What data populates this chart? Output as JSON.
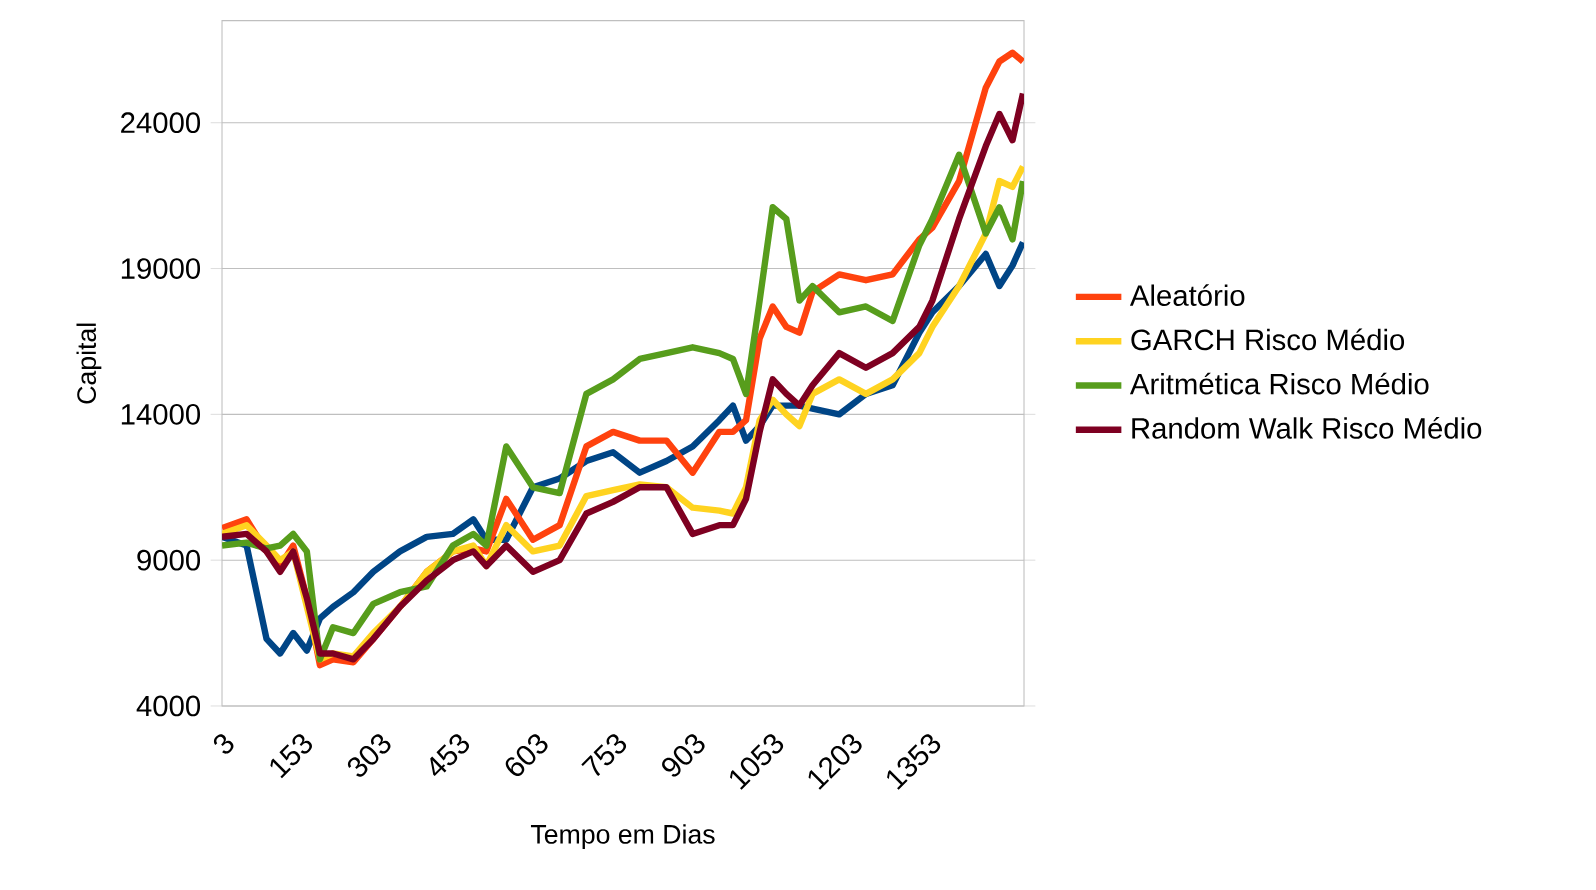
{
  "chart_data": {
    "type": "line",
    "xlabel": "Tempo em Dias",
    "ylabel": "Capital",
    "x": [
      3,
      50,
      88,
      114,
      139,
      165,
      190,
      215,
      254,
      292,
      343,
      394,
      444,
      483,
      508,
      546,
      597,
      648,
      699,
      750,
      801,
      852,
      902,
      953,
      979,
      1004,
      1030,
      1055,
      1081,
      1106,
      1131,
      1182,
      1233,
      1284,
      1335,
      1360,
      1411,
      1462,
      1488,
      1513,
      1533
    ],
    "xlim": [
      3,
      1535
    ],
    "xticks": [
      3,
      153,
      303,
      453,
      603,
      753,
      903,
      1053,
      1203,
      1353
    ],
    "ylim": [
      4000,
      27500
    ],
    "yticks": [
      4000,
      9000,
      14000,
      19000,
      24000
    ],
    "grid": "y",
    "legend": "right",
    "marker": "none",
    "line_style": "solid",
    "series": [
      {
        "color": "#004586",
        "values": [
          9800,
          9500,
          6300,
          5800,
          6500,
          5900,
          7000,
          7400,
          7900,
          8600,
          9300,
          9800,
          9900,
          10400,
          9700,
          9700,
          11500,
          11800,
          12400,
          12700,
          12000,
          12400,
          12900,
          13800,
          14300,
          13100,
          13600,
          14300,
          14300,
          14300,
          14200,
          14000,
          14700,
          15000,
          16800,
          17500,
          18400,
          19500,
          18400,
          19100,
          19900
        ]
      },
      {
        "name": "Aleatório",
        "color": "#ff420e",
        "values": [
          10100,
          10400,
          9300,
          8800,
          9500,
          7700,
          5400,
          5600,
          5500,
          6300,
          7400,
          8600,
          9300,
          9400,
          9300,
          11100,
          9700,
          10200,
          12900,
          13400,
          13100,
          13100,
          12000,
          13400,
          13400,
          13800,
          16600,
          17700,
          17000,
          16800,
          18200,
          18800,
          18600,
          18800,
          20000,
          20400,
          22000,
          25200,
          26100,
          26400,
          26100
        ]
      },
      {
        "name": "GARCH Risco Médio",
        "color": "#ffd320",
        "values": [
          9900,
          10200,
          9500,
          9000,
          9300,
          7400,
          5600,
          5800,
          5700,
          6500,
          7400,
          8600,
          9300,
          9500,
          8800,
          10200,
          9300,
          9500,
          11200,
          11400,
          11600,
          11500,
          10800,
          10700,
          10600,
          11500,
          13800,
          14500,
          14000,
          13600,
          14700,
          15200,
          14700,
          15200,
          16100,
          17000,
          18400,
          20200,
          22000,
          21800,
          22500
        ]
      },
      {
        "name": "Aritmética Risco Médio",
        "color": "#579d1c",
        "values": [
          9500,
          9600,
          9400,
          9500,
          9900,
          9300,
          5600,
          6700,
          6500,
          7500,
          7900,
          8100,
          9500,
          9900,
          9500,
          12900,
          11500,
          11300,
          14700,
          15200,
          15900,
          16100,
          16300,
          16100,
          15900,
          14700,
          17900,
          21100,
          20700,
          17900,
          18400,
          17500,
          17700,
          17200,
          19800,
          20700,
          22900,
          20200,
          21100,
          20000,
          22000
        ]
      },
      {
        "name": "Random Walk Risco Médio",
        "color": "#7e0021",
        "values": [
          9800,
          9900,
          9300,
          8600,
          9300,
          7700,
          5800,
          5800,
          5600,
          6300,
          7400,
          8300,
          9000,
          9300,
          8800,
          9500,
          8600,
          9000,
          10600,
          11000,
          11500,
          11500,
          9900,
          10200,
          10200,
          11100,
          13400,
          15200,
          14700,
          14300,
          15000,
          16100,
          15600,
          16100,
          17000,
          17900,
          20700,
          23200,
          24300,
          23400,
          25000
        ]
      }
    ]
  }
}
